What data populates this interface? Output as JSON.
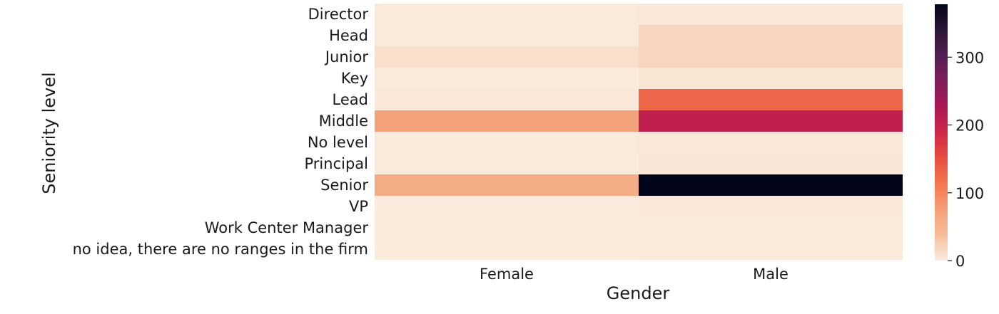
{
  "chart_data": {
    "type": "heatmap",
    "xlabel": "Gender",
    "ylabel": "Seniority level",
    "x_categories": [
      "Female",
      "Male"
    ],
    "y_categories": [
      "Director",
      "Head",
      "Junior",
      "Key",
      "Lead",
      "Middle",
      "No level",
      "Principal",
      "Senior",
      "VP",
      "Work Center Manager",
      "no idea, there are no ranges in the firm"
    ],
    "values": [
      [
        1,
        3
      ],
      [
        1,
        18
      ],
      [
        10,
        18
      ],
      [
        1,
        5
      ],
      [
        2,
        127
      ],
      [
        73,
        205
      ],
      [
        1,
        3
      ],
      [
        1,
        4
      ],
      [
        59,
        378
      ],
      [
        0,
        2
      ],
      [
        0,
        1
      ],
      [
        0,
        1
      ]
    ],
    "colorbar": {
      "min": 0,
      "max": 378,
      "ticks": [
        0,
        100,
        200,
        300
      ],
      "colormap": "rocket_r"
    },
    "colors": {
      "low": "#faebdd",
      "high": "#03051a"
    }
  }
}
